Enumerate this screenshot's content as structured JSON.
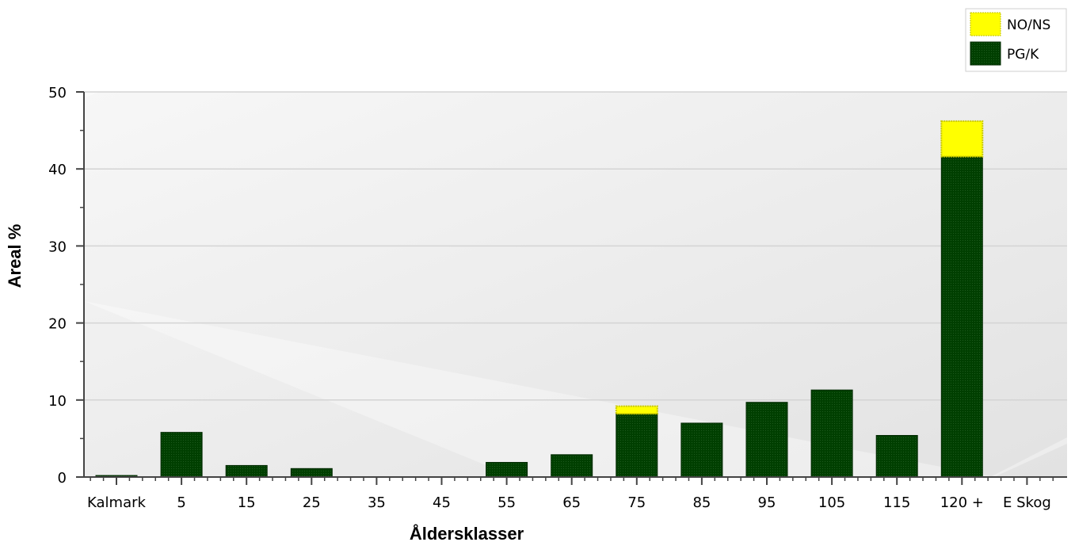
{
  "chart_data": {
    "type": "bar",
    "stacked": true,
    "title": "",
    "xlabel": "Åldersklasser",
    "ylabel": "Areal %",
    "ylim": [
      0,
      50
    ],
    "yticks": [
      0,
      10,
      20,
      30,
      40,
      50
    ],
    "grid": true,
    "legend_position": "top-right",
    "categories": [
      "Kalmark",
      "5",
      "15",
      "25",
      "35",
      "45",
      "55",
      "65",
      "75",
      "85",
      "95",
      "105",
      "115",
      "120 +",
      "E Skog"
    ],
    "series": [
      {
        "name": "PG/K",
        "color": "#003f00",
        "values": [
          0.2,
          5.8,
          1.5,
          1.1,
          0,
          0,
          1.9,
          2.9,
          8.2,
          7.0,
          9.7,
          11.3,
          5.4,
          41.6,
          0
        ]
      },
      {
        "name": "NO/NS",
        "color": "#ffff00",
        "values": [
          0,
          0,
          0,
          0,
          0,
          0,
          0,
          0,
          1.0,
          0,
          0,
          0,
          0,
          4.6,
          0
        ]
      }
    ]
  }
}
